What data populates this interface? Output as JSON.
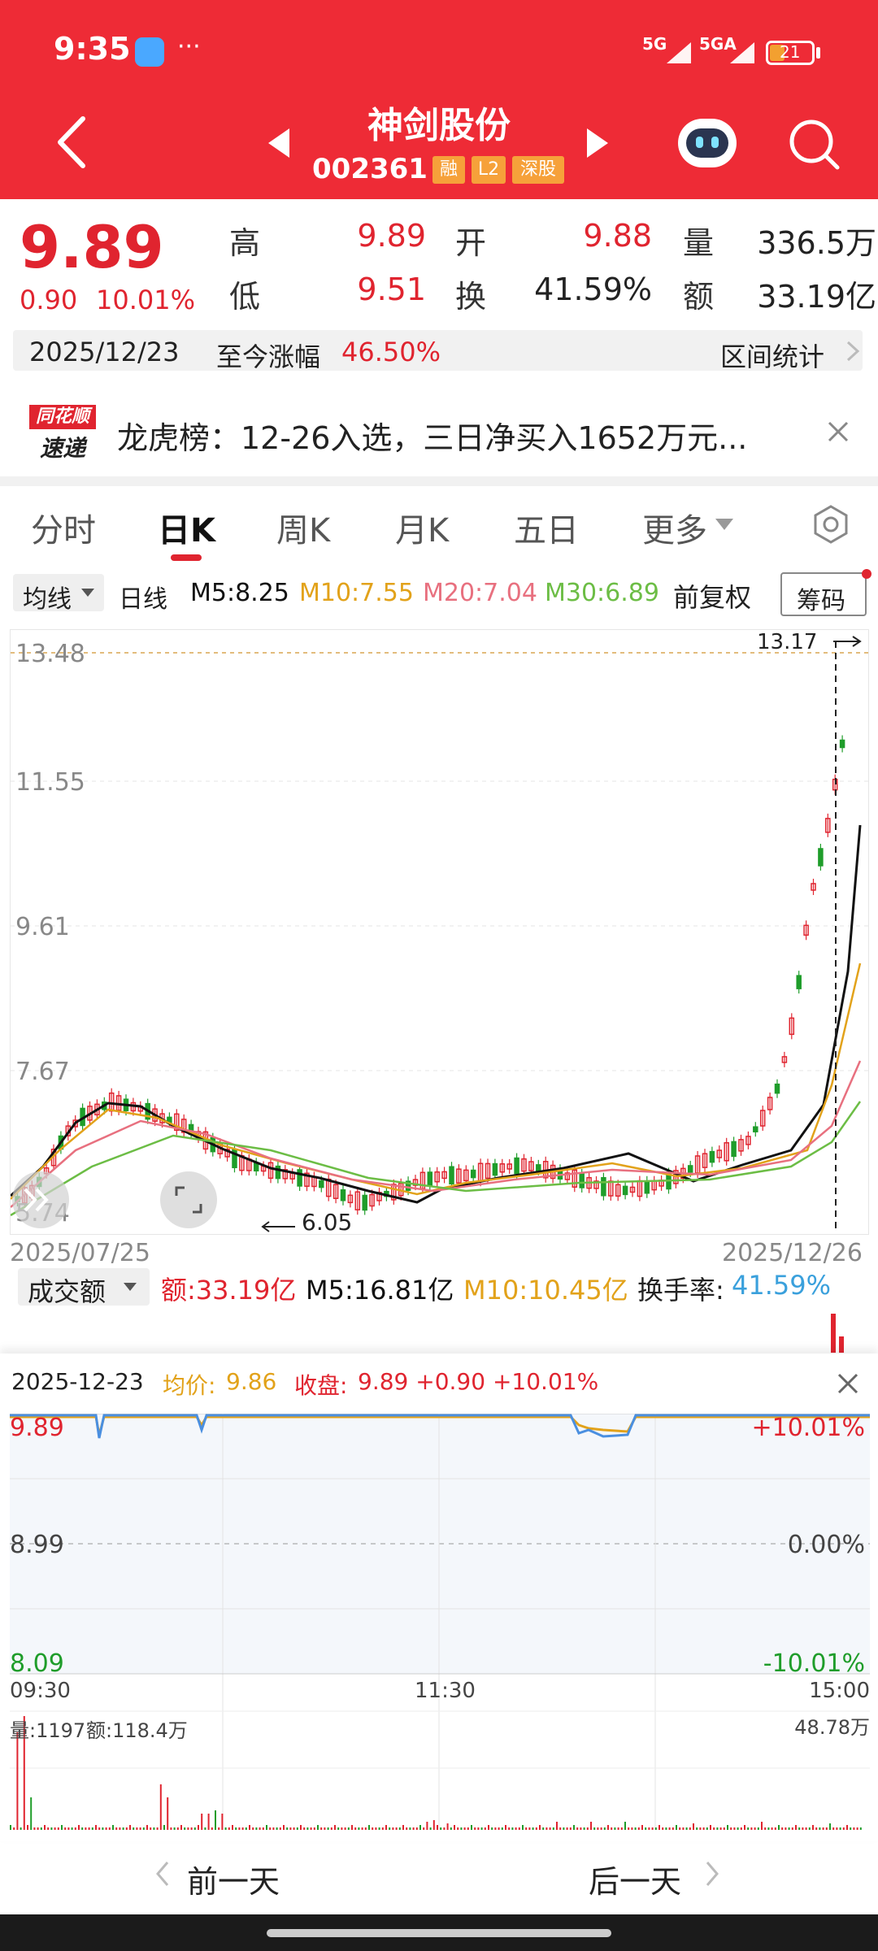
{
  "status_bar": {
    "time": "9:35",
    "dots": "···",
    "net1": "5G",
    "net2": "5GA",
    "battery": "21"
  },
  "header": {
    "stock_name": "神剑股份",
    "stock_code": "002361",
    "tags": [
      "融",
      "L2",
      "深股"
    ]
  },
  "quote": {
    "price": "9.89",
    "change": "0.90",
    "change_pct": "10.01%",
    "high_label": "高",
    "high": "9.89",
    "open_label": "开",
    "open": "9.88",
    "volume_label": "量",
    "volume": "336.5万",
    "low_label": "低",
    "low": "9.51",
    "turnover_label": "换",
    "turnover": "41.59%",
    "amount_label": "额",
    "amount": "33.19亿"
  },
  "date_band": {
    "date": "2025/12/23",
    "gain_label": "至今涨幅",
    "gain": "46.50%",
    "stats": "区间统计"
  },
  "news": {
    "logo_top": "同花顺",
    "logo_bottom": "速递",
    "text": "龙虎榜：12-26入选，三日净买入1652万元..."
  },
  "tabs": [
    {
      "label": "分时"
    },
    {
      "label": "日K"
    },
    {
      "label": "周K"
    },
    {
      "label": "月K"
    },
    {
      "label": "五日"
    },
    {
      "label": "更多"
    }
  ],
  "ma_bar": {
    "select": "均线",
    "period": "日线",
    "m5": "M5:8.25",
    "m10": "M10:7.55",
    "m20": "M20:7.04",
    "m30": "M30:6.89",
    "adj": "前复权",
    "chips": "筹码"
  },
  "kline": {
    "y_labels": [
      "13.48",
      "11.55",
      "9.61",
      "7.67",
      "5.74"
    ],
    "start_date": "2025/07/25",
    "end_date": "2025/12/26",
    "high_mark": "13.17",
    "low_mark": "6.05"
  },
  "volume_bar": {
    "select": "成交额",
    "amount": "额:33.19亿",
    "m5": "M5:16.81亿",
    "m10": "M10:10.45亿",
    "turnover_label": "换手率:",
    "turnover": "41.59%"
  },
  "intraday": {
    "date": "2025-12-23",
    "avg_label": "均价:",
    "avg": "9.86",
    "close_label": "收盘:",
    "close": "9.89 +0.90 +10.01%",
    "p_top": "9.89",
    "p_mid": "8.99",
    "p_bot": "8.09",
    "pct_top": "+10.01%",
    "pct_mid": "0.00%",
    "pct_bot": "-10.01%",
    "t_start": "09:30",
    "t_mid": "11:30",
    "t_end": "15:00",
    "vol_label": "量:1197",
    "amt_label": "额:118.4万",
    "vol_max": "48.78万"
  },
  "nav": {
    "prev": "前一天",
    "next": "后一天"
  },
  "colors": {
    "red": "#e0242f",
    "green": "#1f9d2a",
    "header": "#ee2b36",
    "m5": "#111111",
    "m10": "#e2a21a",
    "m20": "#e8707f",
    "m30": "#6cbd45"
  },
  "chart_data": {
    "type": "line",
    "title": "",
    "ylim": [
      5.74,
      13.48
    ],
    "series": [
      {
        "name": "M5",
        "values": []
      },
      {
        "name": "M10",
        "values": []
      },
      {
        "name": "M20",
        "values": []
      },
      {
        "name": "M30",
        "values": []
      }
    ]
  }
}
